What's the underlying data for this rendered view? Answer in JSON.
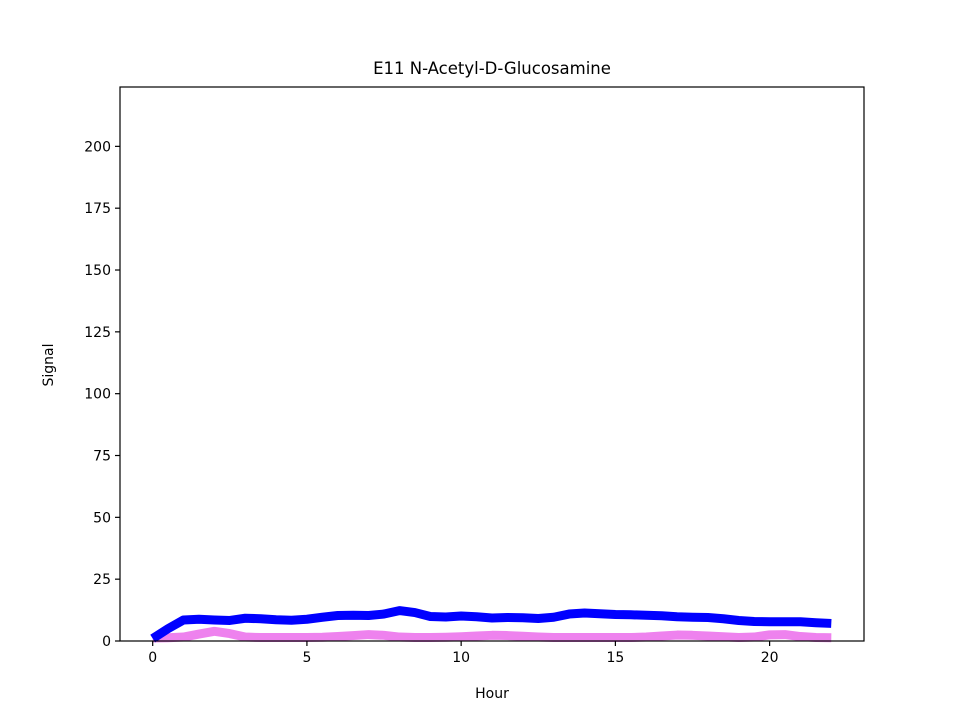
{
  "chart_data": {
    "type": "line",
    "title": "E11 N-Acetyl-D-Glucosamine",
    "xlabel": "Hour",
    "ylabel": "Signal",
    "xlim": [
      -1.06,
      23.06
    ],
    "ylim": [
      0,
      224
    ],
    "x_ticks": [
      0,
      5,
      10,
      15,
      20
    ],
    "y_ticks": [
      0,
      25,
      50,
      75,
      100,
      125,
      150,
      175,
      200
    ],
    "grid": false,
    "legend": "none",
    "series": [
      {
        "color": "#0000ff",
        "x": [
          0,
          0.5,
          1,
          1.5,
          2,
          2.5,
          3,
          3.5,
          4,
          4.5,
          5,
          5.5,
          6,
          6.5,
          7,
          7.5,
          8,
          8.5,
          9,
          9.5,
          10,
          10.5,
          11,
          11.5,
          12,
          12.5,
          13,
          13.5,
          14,
          14.5,
          15,
          15.5,
          16,
          16.5,
          17,
          17.5,
          18,
          18.5,
          19,
          19.5,
          20,
          20.5,
          21,
          21.5,
          22
        ],
        "values": [
          1,
          5,
          8.5,
          8.8,
          8.5,
          8.3,
          9.2,
          9.0,
          8.6,
          8.4,
          8.8,
          9.6,
          10.3,
          10.4,
          10.3,
          10.9,
          12.3,
          11.5,
          9.9,
          9.7,
          10.1,
          9.8,
          9.3,
          9.5,
          9.4,
          9.1,
          9.6,
          10.9,
          11.3,
          11.0,
          10.7,
          10.6,
          10.4,
          10.2,
          9.8,
          9.6,
          9.5,
          9.0,
          8.3,
          7.9,
          7.8,
          7.8,
          7.8,
          7.4,
          7.1
        ]
      },
      {
        "color": "#ee82ee",
        "x": [
          0,
          0.5,
          1,
          1.5,
          2,
          2.5,
          3,
          3.5,
          4,
          4.5,
          5,
          5.5,
          6,
          6.5,
          7,
          7.5,
          8,
          8.5,
          9,
          9.5,
          10,
          10.5,
          11,
          11.5,
          12,
          12.5,
          13,
          13.5,
          14,
          14.5,
          15,
          15.5,
          16,
          16.5,
          17,
          17.5,
          18,
          18.5,
          19,
          19.5,
          20,
          20.5,
          21,
          21.5,
          22
        ],
        "values": [
          1.2,
          1.3,
          1.6,
          2.8,
          3.9,
          3.0,
          1.6,
          1.4,
          1.4,
          1.4,
          1.4,
          1.5,
          1.8,
          2.2,
          2.6,
          2.3,
          1.6,
          1.4,
          1.4,
          1.5,
          1.7,
          2.0,
          2.3,
          2.2,
          1.9,
          1.6,
          1.4,
          1.4,
          1.4,
          1.4,
          1.4,
          1.4,
          1.6,
          2.0,
          2.4,
          2.3,
          2.0,
          1.7,
          1.4,
          1.6,
          2.5,
          2.6,
          1.8,
          1.4,
          1.3
        ]
      }
    ]
  }
}
